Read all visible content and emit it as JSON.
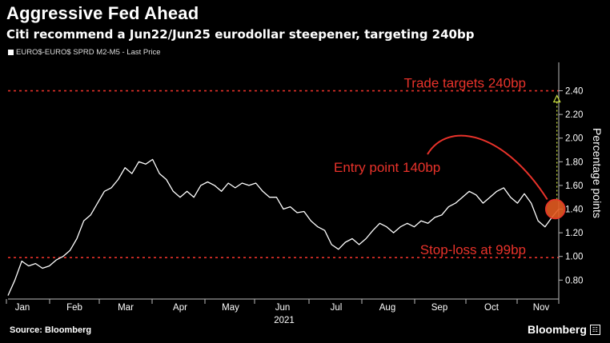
{
  "title": "Aggressive Fed Ahead",
  "subtitle": "Citi recommend a Jun22/Jun25 eurodollar steepener, targeting 240bp",
  "legend_label": "EURO$-EURO$ SPRD  M2-M5 - Last Price",
  "source": "Source: Bloomberg",
  "brand": "Bloomberg",
  "chart_data": {
    "type": "line",
    "ylabel": "Percentage points",
    "ylim": [
      0.64,
      2.64
    ],
    "yticks": [
      "0.80",
      "1.00",
      "1.20",
      "1.40",
      "1.60",
      "1.80",
      "2.00",
      "2.20",
      "2.40"
    ],
    "month_labels": [
      "Jan",
      "Feb",
      "Mar",
      "Apr",
      "May",
      "Jun",
      "Jul",
      "Aug",
      "Sep",
      "Oct",
      "Nov"
    ],
    "year_label": "2021",
    "colors": {
      "line": "#ffffff",
      "annotation": "#e8322a",
      "target_arrow": "#c8dc3c",
      "grid": "#888888"
    },
    "series": [
      {
        "x": [
          0,
          4,
          8,
          12,
          16,
          20,
          24,
          28,
          32,
          36,
          40,
          44,
          48,
          52,
          56,
          60,
          64,
          68,
          72,
          76,
          80,
          84,
          88,
          92,
          96,
          100,
          104,
          108,
          112,
          116,
          120,
          124,
          128,
          132,
          136,
          140,
          144,
          148,
          152,
          156,
          160,
          164,
          168,
          172,
          176,
          180,
          184,
          188,
          192,
          196,
          200,
          204,
          208,
          212,
          216,
          220,
          224,
          228,
          232,
          236,
          240,
          244,
          248,
          252,
          256,
          260,
          264,
          268,
          272,
          276,
          280,
          284,
          288,
          292,
          296,
          300,
          304,
          308,
          312,
          316,
          320
        ],
        "values": [
          0.67,
          0.8,
          0.96,
          0.92,
          0.94,
          0.9,
          0.92,
          0.97,
          1.0,
          1.05,
          1.15,
          1.3,
          1.35,
          1.45,
          1.55,
          1.58,
          1.65,
          1.75,
          1.7,
          1.8,
          1.78,
          1.82,
          1.7,
          1.65,
          1.55,
          1.5,
          1.55,
          1.5,
          1.6,
          1.63,
          1.6,
          1.55,
          1.62,
          1.58,
          1.62,
          1.6,
          1.62,
          1.55,
          1.5,
          1.5,
          1.4,
          1.42,
          1.37,
          1.38,
          1.3,
          1.25,
          1.22,
          1.1,
          1.06,
          1.12,
          1.15,
          1.1,
          1.15,
          1.22,
          1.28,
          1.25,
          1.2,
          1.25,
          1.28,
          1.25,
          1.3,
          1.28,
          1.33,
          1.35,
          1.42,
          1.45,
          1.5,
          1.55,
          1.52,
          1.45,
          1.5,
          1.55,
          1.58,
          1.5,
          1.45,
          1.53,
          1.45,
          1.3,
          1.25,
          1.33,
          1.4
        ]
      }
    ],
    "reference_lines": [
      {
        "y": 2.4,
        "label": "Trade targets 240bp"
      },
      {
        "y": 0.99,
        "label": "Stop-loss at 99bp"
      }
    ],
    "entry_point": {
      "x": 318,
      "y": 1.4,
      "label": "Entry point 140bp"
    },
    "grid": false
  }
}
